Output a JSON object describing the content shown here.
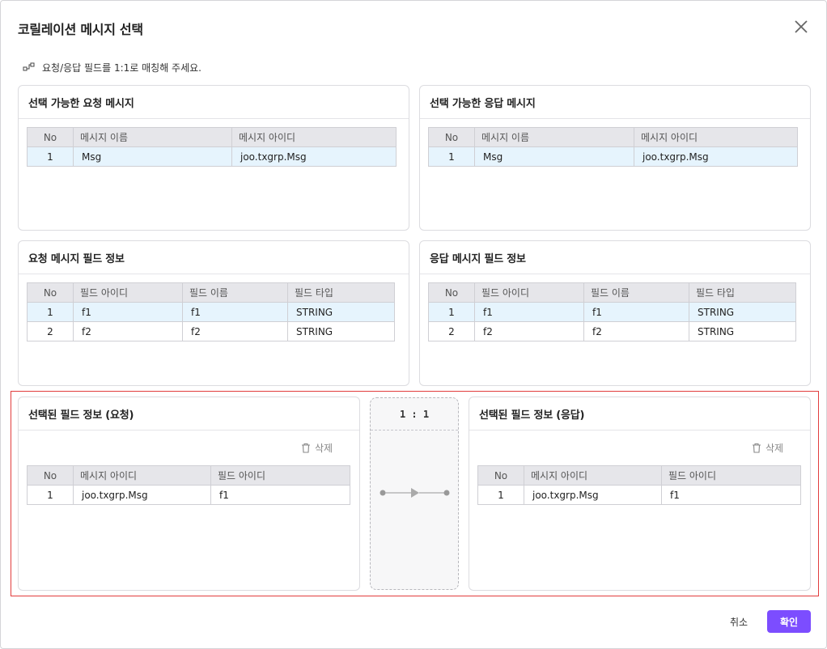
{
  "dialog": {
    "title": "코릴레이션 메시지 선택",
    "hint": "요청/응답 필드를 1:1로 매칭해 주세요."
  },
  "req_msg": {
    "title": "선택 가능한 요청 메시지",
    "headers": [
      "No",
      "메시지 이름",
      "메시지 아이디"
    ],
    "rows": [
      [
        "1",
        "Msg",
        "joo.txgrp.Msg"
      ]
    ]
  },
  "res_msg": {
    "title": "선택 가능한 응답 메시지",
    "headers": [
      "No",
      "메시지 이름",
      "메시지 아이디"
    ],
    "rows": [
      [
        "1",
        "Msg",
        "joo.txgrp.Msg"
      ]
    ]
  },
  "req_field": {
    "title": "요청 메시지 필드 정보",
    "headers": [
      "No",
      "필드 아이디",
      "필드 이름",
      "필드 타입"
    ],
    "rows": [
      [
        "1",
        "f1",
        "f1",
        "STRING"
      ],
      [
        "2",
        "f2",
        "f2",
        "STRING"
      ]
    ]
  },
  "res_field": {
    "title": "응답 메시지 필드 정보",
    "headers": [
      "No",
      "필드 아이디",
      "필드 이름",
      "필드 타입"
    ],
    "rows": [
      [
        "1",
        "f1",
        "f1",
        "STRING"
      ],
      [
        "2",
        "f2",
        "f2",
        "STRING"
      ]
    ]
  },
  "sel_req": {
    "title": "선택된 필드 정보 (요청)",
    "delete_label": "삭제",
    "headers": [
      "No",
      "메시지 아이디",
      "필드 아이디"
    ],
    "rows": [
      [
        "1",
        "joo.txgrp.Msg",
        "f1"
      ]
    ]
  },
  "sel_res": {
    "title": "선택된 필드 정보 (응답)",
    "delete_label": "삭제",
    "headers": [
      "No",
      "메시지 아이디",
      "필드 아이디"
    ],
    "rows": [
      [
        "1",
        "joo.txgrp.Msg",
        "f1"
      ]
    ]
  },
  "mapping": {
    "ratio": "1 : 1"
  },
  "footer": {
    "cancel_label": "취소",
    "ok_label": "확인"
  },
  "colors": {
    "accent": "#7c4dff",
    "highlight_border": "#e23d3d",
    "selected_row": "#e6f4fd"
  },
  "icons": {
    "close": "close-icon",
    "hint": "link-icon",
    "delete": "trash-icon",
    "mapping": "arrow-right-icon"
  }
}
